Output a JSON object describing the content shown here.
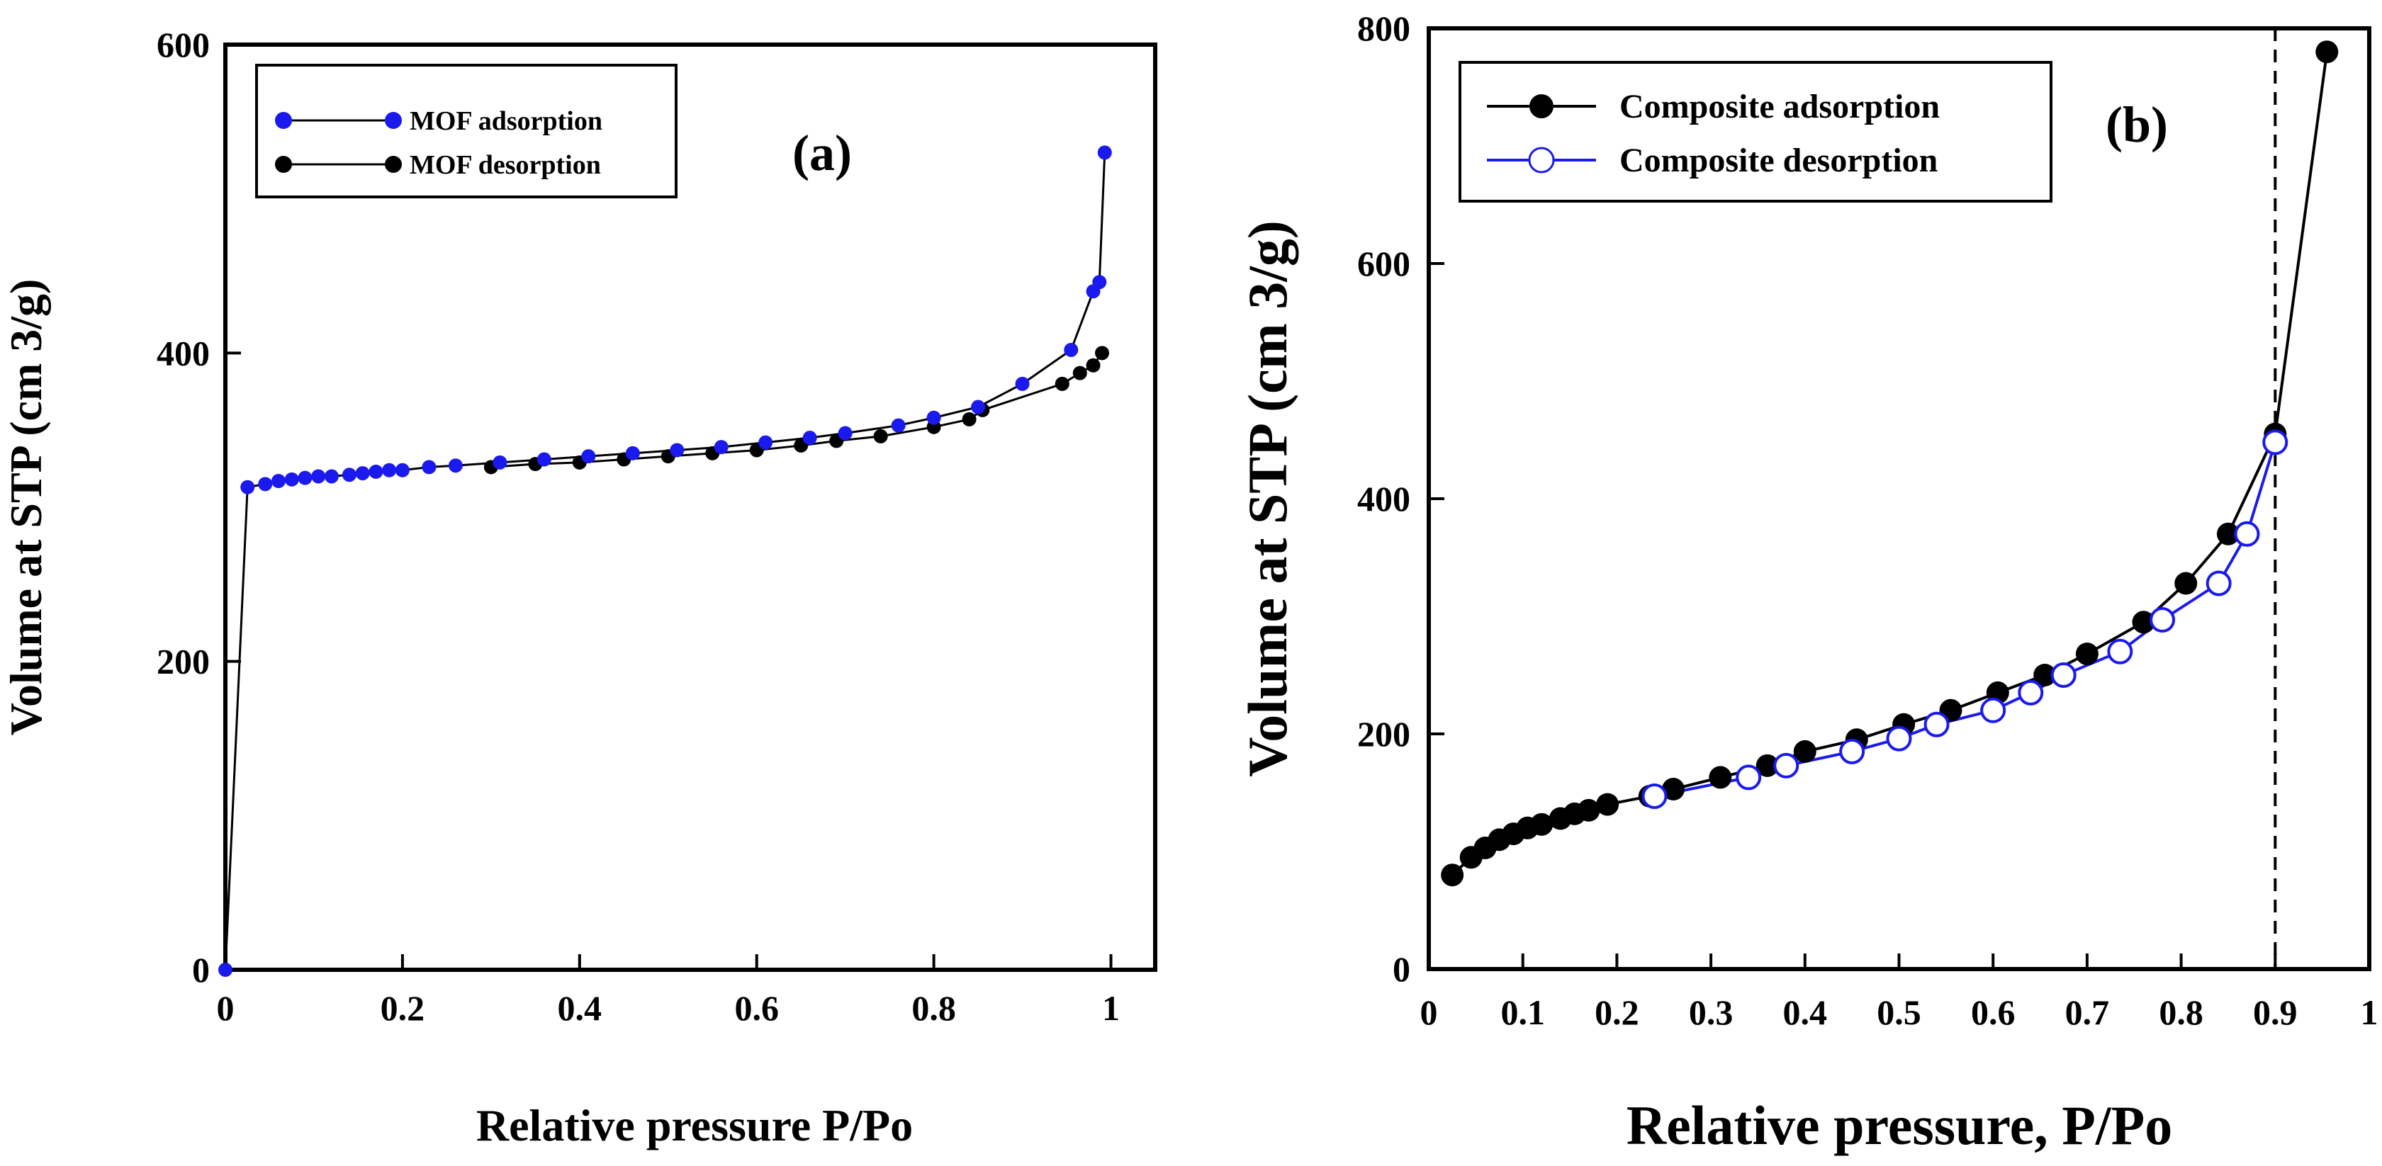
{
  "chart_data": [
    {
      "panel": "(a)",
      "type": "line",
      "xlabel": "Relative pressure P/Po",
      "ylabel": "Volume at STP (cm 3/g)",
      "xlim": [
        0,
        1.05
      ],
      "ylim": [
        0,
        600
      ],
      "xticks": [
        0,
        0.2,
        0.4,
        0.6,
        0.8,
        1
      ],
      "xtick_labels": [
        "0",
        "0.2",
        "0.4",
        "0.6",
        "0.8",
        "1"
      ],
      "yticks": [
        0,
        200,
        400,
        600
      ],
      "ytick_labels": [
        "0",
        "200",
        "400",
        "600"
      ],
      "legend_position": "top-left",
      "series": [
        {
          "name": "MOF desorption",
          "color": "#000000",
          "marker": "filled-circle",
          "x": [
            0.99,
            0.98,
            0.965,
            0.945,
            0.855,
            0.84,
            0.8,
            0.74,
            0.69,
            0.65,
            0.6,
            0.55,
            0.5,
            0.45,
            0.4,
            0.35,
            0.3
          ],
          "y": [
            400,
            392,
            387,
            380,
            363,
            357,
            352,
            346,
            343,
            340,
            337,
            335,
            333,
            331,
            329,
            328,
            326
          ]
        },
        {
          "name": "MOF adsorption",
          "color": "#1a1aee",
          "marker": "filled-circle",
          "x": [
            0,
            0.025,
            0.045,
            0.06,
            0.075,
            0.09,
            0.105,
            0.12,
            0.14,
            0.155,
            0.17,
            0.185,
            0.2,
            0.23,
            0.26,
            0.31,
            0.36,
            0.41,
            0.46,
            0.51,
            0.56,
            0.61,
            0.66,
            0.7,
            0.76,
            0.8,
            0.85,
            0.9,
            0.955,
            0.98,
            0.987,
            0.993
          ],
          "y": [
            0,
            313,
            315,
            317,
            318,
            319,
            320,
            320,
            321,
            322,
            323,
            324,
            324,
            326,
            327,
            329,
            331,
            333,
            335,
            337,
            339,
            342,
            345,
            348,
            353,
            358,
            365,
            380,
            402,
            440,
            446,
            530
          ]
        }
      ]
    },
    {
      "panel": "(b)",
      "type": "line",
      "xlabel": "Relative pressure, P/Po",
      "ylabel": "Volume at STP (cm 3/g)",
      "xlim": [
        0,
        1
      ],
      "ylim": [
        0,
        800
      ],
      "xticks": [
        0,
        0.1,
        0.2,
        0.3,
        0.4,
        0.5,
        0.6,
        0.7,
        0.8,
        0.9,
        1
      ],
      "xtick_labels": [
        "0",
        "0.1",
        "0.2",
        "0.3",
        "0.4",
        "0.5",
        "0.6",
        "0.7",
        "0.8",
        "0.9",
        "1"
      ],
      "yticks": [
        0,
        200,
        400,
        600,
        800
      ],
      "ytick_labels": [
        "0",
        "200",
        "400",
        "600",
        "800"
      ],
      "reference_line": {
        "x": 0.9,
        "style": "dashed"
      },
      "legend_position": "top-left",
      "series": [
        {
          "name": "Composite adsorption",
          "color": "#000000",
          "marker": "filled-circle",
          "x": [
            0.025,
            0.045,
            0.06,
            0.075,
            0.09,
            0.105,
            0.12,
            0.14,
            0.155,
            0.17,
            0.19,
            0.235,
            0.26,
            0.31,
            0.36,
            0.4,
            0.455,
            0.505,
            0.555,
            0.605,
            0.655,
            0.7,
            0.76,
            0.805,
            0.85,
            0.9,
            0.955
          ],
          "y": [
            80,
            95,
            103,
            110,
            115,
            120,
            123,
            128,
            132,
            135,
            140,
            147,
            153,
            163,
            173,
            185,
            195,
            208,
            220,
            235,
            250,
            268,
            295,
            328,
            370,
            455,
            780
          ]
        },
        {
          "name": "Composite desorption",
          "color": "#1a1aee",
          "marker": "open-circle",
          "x": [
            0.9,
            0.87,
            0.84,
            0.78,
            0.735,
            0.675,
            0.64,
            0.6,
            0.54,
            0.5,
            0.45,
            0.38,
            0.34,
            0.24
          ],
          "y": [
            448,
            370,
            328,
            297,
            270,
            250,
            235,
            220,
            208,
            196,
            185,
            173,
            163,
            147
          ]
        }
      ]
    }
  ]
}
